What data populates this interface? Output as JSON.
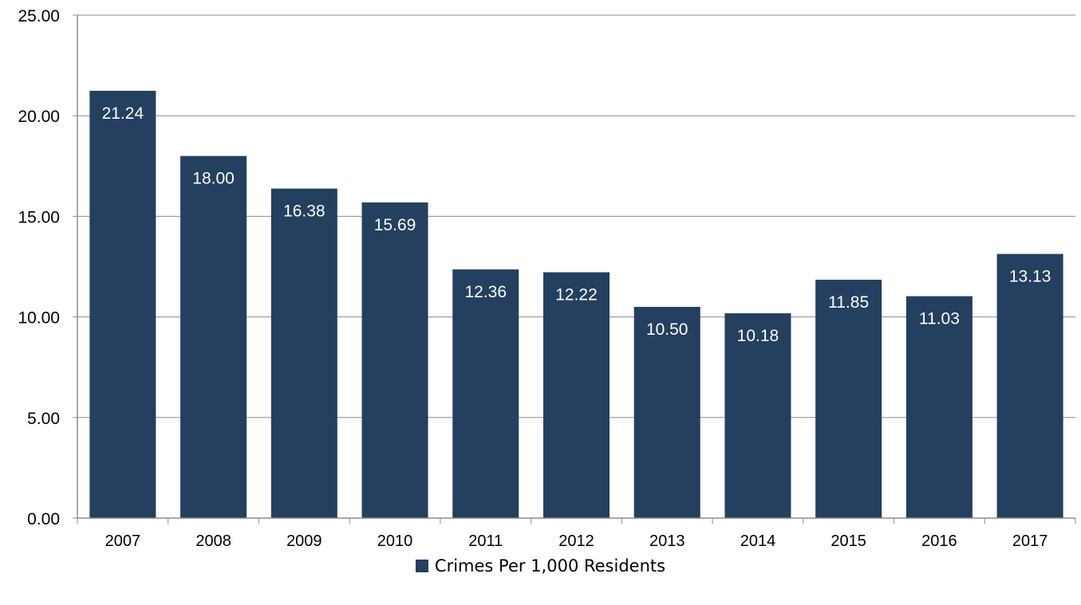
{
  "chart_data": {
    "type": "bar",
    "categories": [
      "2007",
      "2008",
      "2009",
      "2010",
      "2011",
      "2012",
      "2013",
      "2014",
      "2015",
      "2016",
      "2017"
    ],
    "series": [
      {
        "name": "Crimes Per 1,000 Residents",
        "values": [
          21.24,
          18.0,
          16.38,
          15.69,
          12.36,
          12.22,
          10.5,
          10.18,
          11.85,
          11.03,
          13.13
        ],
        "labels": [
          "21.24",
          "18.00",
          "16.38",
          "15.69",
          "12.36",
          "12.22",
          "10.50",
          "10.18",
          "11.85",
          "11.03",
          "13.13"
        ]
      }
    ],
    "ylim": [
      0,
      25
    ],
    "yticks": [
      "0.00",
      "5.00",
      "10.00",
      "15.00",
      "20.00",
      "25.00"
    ],
    "ytick_values": [
      0,
      5,
      10,
      15,
      20,
      25
    ],
    "grid": true,
    "legend_position": "bottom-center",
    "title": "",
    "xlabel": "",
    "ylabel": "",
    "colors": {
      "bar": "#243f60",
      "grid": "#8c8c8c",
      "axis": "#8c8c8c"
    }
  }
}
